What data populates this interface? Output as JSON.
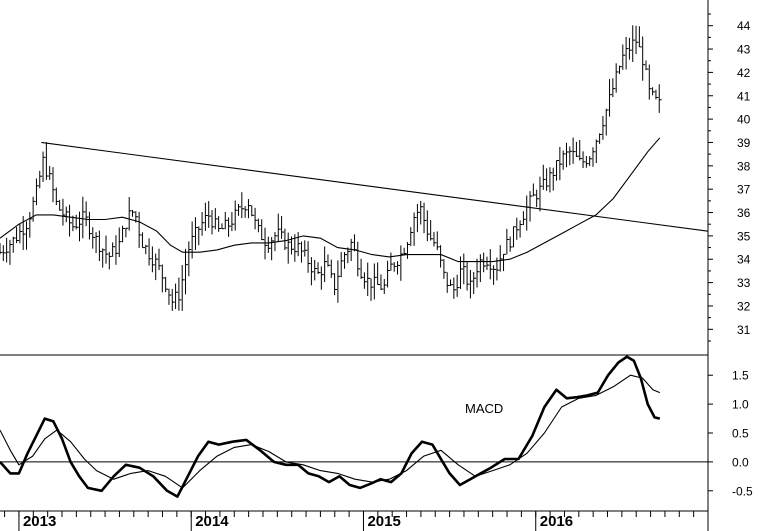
{
  "chart_data": [
    {
      "type": "ohlc",
      "panel": "price",
      "y_ticks": [
        31,
        32,
        33,
        34,
        35,
        36,
        37,
        38,
        39,
        40,
        41,
        42,
        43,
        44
      ],
      "ylim": [
        29.9,
        45.1
      ],
      "x_ticks": [
        {
          "label": "2013",
          "t": 2013.0
        },
        {
          "label": "2014",
          "t": 2014.0
        },
        {
          "label": "2015",
          "t": 2015.0
        },
        {
          "label": "2016",
          "t": 2016.0
        }
      ],
      "xlim": [
        2012.89,
        2017.0
      ],
      "price_path": [
        [
          2012.89,
          34.3
        ],
        [
          2012.98,
          34.9
        ],
        [
          2013.05,
          35.6
        ],
        [
          2013.1,
          36.8
        ],
        [
          2013.14,
          38.2
        ],
        [
          2013.18,
          37.4
        ],
        [
          2013.22,
          36.3
        ],
        [
          2013.27,
          35.8
        ],
        [
          2013.31,
          35.4
        ],
        [
          2013.38,
          35.8
        ],
        [
          2013.45,
          34.8
        ],
        [
          2013.52,
          34.1
        ],
        [
          2013.58,
          34.6
        ],
        [
          2013.63,
          35.8
        ],
        [
          2013.67,
          36.1
        ],
        [
          2013.71,
          34.8
        ],
        [
          2013.76,
          34.2
        ],
        [
          2013.8,
          33.8
        ],
        [
          2013.85,
          33.0
        ],
        [
          2013.89,
          32.2
        ],
        [
          2013.93,
          32.5
        ],
        [
          2013.99,
          34.6
        ],
        [
          2014.05,
          35.4
        ],
        [
          2014.1,
          35.9
        ],
        [
          2014.16,
          35.2
        ],
        [
          2014.22,
          35.5
        ],
        [
          2014.28,
          36.1
        ],
        [
          2014.33,
          36.5
        ],
        [
          2014.38,
          35.3
        ],
        [
          2014.44,
          34.7
        ],
        [
          2014.5,
          35.1
        ],
        [
          2014.56,
          34.6
        ],
        [
          2014.62,
          34.5
        ],
        [
          2014.68,
          33.9
        ],
        [
          2014.73,
          33.3
        ],
        [
          2014.78,
          33.8
        ],
        [
          2014.83,
          32.8
        ],
        [
          2014.88,
          34.1
        ],
        [
          2014.93,
          34.7
        ],
        [
          2014.98,
          33.6
        ],
        [
          2015.02,
          33.1
        ],
        [
          2015.07,
          32.9
        ],
        [
          2015.12,
          32.8
        ],
        [
          2015.16,
          33.7
        ],
        [
          2015.21,
          34.1
        ],
        [
          2015.25,
          34.7
        ],
        [
          2015.29,
          35.8
        ],
        [
          2015.33,
          36.2
        ],
        [
          2015.38,
          35.0
        ],
        [
          2015.42,
          34.6
        ],
        [
          2015.47,
          33.2
        ],
        [
          2015.52,
          32.6
        ],
        [
          2015.57,
          33.6
        ],
        [
          2015.62,
          32.8
        ],
        [
          2015.67,
          33.9
        ],
        [
          2015.72,
          34.0
        ],
        [
          2015.77,
          33.6
        ],
        [
          2015.81,
          34.4
        ],
        [
          2015.86,
          34.9
        ],
        [
          2015.9,
          35.6
        ],
        [
          2015.94,
          36.1
        ],
        [
          2015.98,
          36.6
        ],
        [
          2016.04,
          37.1
        ],
        [
          2016.09,
          37.6
        ],
        [
          2016.15,
          38.3
        ],
        [
          2016.2,
          38.6
        ],
        [
          2016.26,
          38.1
        ],
        [
          2016.31,
          38.4
        ],
        [
          2016.36,
          39.3
        ],
        [
          2016.41,
          40.4
        ],
        [
          2016.46,
          41.6
        ],
        [
          2016.5,
          42.6
        ],
        [
          2016.54,
          43.0
        ],
        [
          2016.58,
          43.4
        ],
        [
          2016.62,
          42.6
        ],
        [
          2016.66,
          41.1
        ],
        [
          2016.69,
          40.8
        ],
        [
          2016.72,
          40.6
        ]
      ],
      "moving_average": [
        [
          2012.89,
          34.9
        ],
        [
          2013.0,
          35.5
        ],
        [
          2013.1,
          35.9
        ],
        [
          2013.2,
          35.9
        ],
        [
          2013.3,
          35.8
        ],
        [
          2013.4,
          35.7
        ],
        [
          2013.5,
          35.7
        ],
        [
          2013.6,
          35.8
        ],
        [
          2013.7,
          35.6
        ],
        [
          2013.8,
          35.2
        ],
        [
          2013.88,
          34.6
        ],
        [
          2013.95,
          34.3
        ],
        [
          2014.05,
          34.3
        ],
        [
          2014.15,
          34.4
        ],
        [
          2014.25,
          34.6
        ],
        [
          2014.35,
          34.7
        ],
        [
          2014.45,
          34.7
        ],
        [
          2014.55,
          34.8
        ],
        [
          2014.65,
          35.0
        ],
        [
          2014.75,
          34.9
        ],
        [
          2014.85,
          34.5
        ],
        [
          2014.95,
          34.4
        ],
        [
          2015.05,
          34.2
        ],
        [
          2015.15,
          34.1
        ],
        [
          2015.25,
          34.2
        ],
        [
          2015.35,
          34.2
        ],
        [
          2015.45,
          34.2
        ],
        [
          2015.55,
          33.9
        ],
        [
          2015.65,
          33.9
        ],
        [
          2015.75,
          33.9
        ],
        [
          2015.85,
          34.0
        ],
        [
          2015.95,
          34.3
        ],
        [
          2016.05,
          34.7
        ],
        [
          2016.15,
          35.1
        ],
        [
          2016.25,
          35.5
        ],
        [
          2016.35,
          35.9
        ],
        [
          2016.45,
          36.6
        ],
        [
          2016.55,
          37.6
        ],
        [
          2016.65,
          38.6
        ],
        [
          2016.72,
          39.2
        ]
      ],
      "trendline": {
        "from": [
          2013.13,
          39.0
        ],
        "to": [
          2017.0,
          35.2
        ]
      }
    },
    {
      "type": "line",
      "panel": "indicator",
      "label": "MACD",
      "y_ticks": [
        "-0.5",
        "0.0",
        "0.5",
        "1.0",
        "1.5"
      ],
      "y_tick_values": [
        -0.5,
        0,
        0.5,
        1.0,
        1.5
      ],
      "ylim": [
        -0.85,
        1.85
      ],
      "series": [
        {
          "style": "bold",
          "points": [
            [
              2012.89,
              0.0
            ],
            [
              2012.95,
              -0.2
            ],
            [
              2013.0,
              -0.2
            ],
            [
              2013.05,
              0.15
            ],
            [
              2013.1,
              0.45
            ],
            [
              2013.15,
              0.75
            ],
            [
              2013.2,
              0.7
            ],
            [
              2013.25,
              0.4
            ],
            [
              2013.3,
              0.0
            ],
            [
              2013.35,
              -0.25
            ],
            [
              2013.4,
              -0.45
            ],
            [
              2013.48,
              -0.5
            ],
            [
              2013.55,
              -0.25
            ],
            [
              2013.62,
              -0.05
            ],
            [
              2013.7,
              -0.1
            ],
            [
              2013.78,
              -0.25
            ],
            [
              2013.86,
              -0.5
            ],
            [
              2013.92,
              -0.6
            ],
            [
              2013.98,
              -0.25
            ],
            [
              2014.04,
              0.1
            ],
            [
              2014.1,
              0.35
            ],
            [
              2014.16,
              0.3
            ],
            [
              2014.24,
              0.35
            ],
            [
              2014.32,
              0.38
            ],
            [
              2014.4,
              0.2
            ],
            [
              2014.48,
              0.0
            ],
            [
              2014.55,
              -0.05
            ],
            [
              2014.62,
              -0.05
            ],
            [
              2014.68,
              -0.2
            ],
            [
              2014.74,
              -0.25
            ],
            [
              2014.8,
              -0.35
            ],
            [
              2014.86,
              -0.25
            ],
            [
              2014.92,
              -0.4
            ],
            [
              2014.98,
              -0.45
            ],
            [
              2015.04,
              -0.38
            ],
            [
              2015.1,
              -0.3
            ],
            [
              2015.16,
              -0.35
            ],
            [
              2015.22,
              -0.2
            ],
            [
              2015.28,
              0.15
            ],
            [
              2015.34,
              0.35
            ],
            [
              2015.4,
              0.3
            ],
            [
              2015.46,
              0.0
            ],
            [
              2015.5,
              -0.2
            ],
            [
              2015.56,
              -0.4
            ],
            [
              2015.62,
              -0.3
            ],
            [
              2015.68,
              -0.2
            ],
            [
              2015.74,
              -0.1
            ],
            [
              2015.82,
              0.05
            ],
            [
              2015.9,
              0.05
            ],
            [
              2015.98,
              0.45
            ],
            [
              2016.05,
              0.95
            ],
            [
              2016.12,
              1.25
            ],
            [
              2016.18,
              1.1
            ],
            [
              2016.24,
              1.12
            ],
            [
              2016.3,
              1.15
            ],
            [
              2016.36,
              1.2
            ],
            [
              2016.42,
              1.5
            ],
            [
              2016.48,
              1.72
            ],
            [
              2016.53,
              1.82
            ],
            [
              2016.57,
              1.75
            ],
            [
              2016.61,
              1.45
            ],
            [
              2016.65,
              1.0
            ],
            [
              2016.69,
              0.77
            ],
            [
              2016.72,
              0.75
            ]
          ]
        },
        {
          "style": "thin",
          "points": [
            [
              2012.89,
              0.55
            ],
            [
              2012.95,
              0.2
            ],
            [
              2013.0,
              -0.05
            ],
            [
              2013.08,
              0.1
            ],
            [
              2013.15,
              0.4
            ],
            [
              2013.22,
              0.55
            ],
            [
              2013.3,
              0.35
            ],
            [
              2013.38,
              0.05
            ],
            [
              2013.45,
              -0.15
            ],
            [
              2013.55,
              -0.3
            ],
            [
              2013.65,
              -0.2
            ],
            [
              2013.75,
              -0.15
            ],
            [
              2013.85,
              -0.25
            ],
            [
              2013.95,
              -0.45
            ],
            [
              2014.05,
              -0.15
            ],
            [
              2014.15,
              0.1
            ],
            [
              2014.25,
              0.25
            ],
            [
              2014.35,
              0.3
            ],
            [
              2014.45,
              0.18
            ],
            [
              2014.55,
              0.0
            ],
            [
              2014.65,
              -0.05
            ],
            [
              2014.75,
              -0.15
            ],
            [
              2014.85,
              -0.2
            ],
            [
              2014.95,
              -0.3
            ],
            [
              2015.05,
              -0.35
            ],
            [
              2015.15,
              -0.3
            ],
            [
              2015.25,
              -0.15
            ],
            [
              2015.35,
              0.1
            ],
            [
              2015.45,
              0.2
            ],
            [
              2015.55,
              -0.05
            ],
            [
              2015.65,
              -0.25
            ],
            [
              2015.75,
              -0.15
            ],
            [
              2015.85,
              -0.05
            ],
            [
              2015.95,
              0.15
            ],
            [
              2016.05,
              0.5
            ],
            [
              2016.15,
              0.95
            ],
            [
              2016.25,
              1.1
            ],
            [
              2016.35,
              1.15
            ],
            [
              2016.45,
              1.3
            ],
            [
              2016.55,
              1.5
            ],
            [
              2016.62,
              1.45
            ],
            [
              2016.68,
              1.25
            ],
            [
              2016.72,
              1.2
            ]
          ]
        }
      ]
    }
  ]
}
